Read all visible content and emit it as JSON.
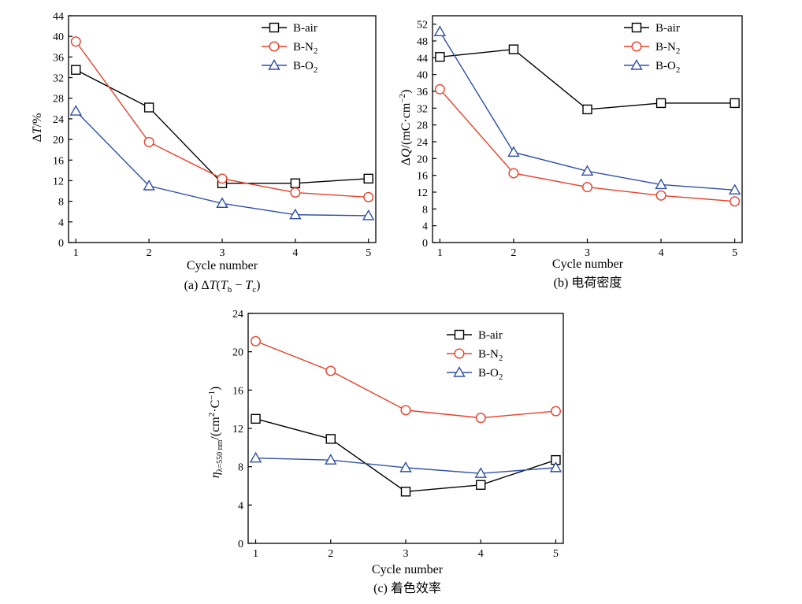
{
  "colors": {
    "B-air": "#000000",
    "B-N2": "#e8402a",
    "B-O2": "#2f4fa8"
  },
  "chart_data": [
    {
      "id": "a",
      "type": "line",
      "xlabel": "Cycle number",
      "caption": "(a) ΔT(Tb − Tc)",
      "x": [
        1,
        2,
        3,
        4,
        5
      ],
      "xlim": [
        0.9,
        5.1
      ],
      "ylim": [
        0,
        44
      ],
      "yticks": [
        0,
        4,
        8,
        12,
        16,
        20,
        24,
        28,
        32,
        36,
        40,
        44
      ],
      "legend_position": "top-right",
      "series": [
        {
          "name": "B-air",
          "marker": "square",
          "values": [
            33.5,
            26.2,
            11.5,
            11.5,
            12.4
          ]
        },
        {
          "name": "B-N2",
          "marker": "circle",
          "values": [
            39.0,
            19.5,
            12.4,
            9.7,
            8.8
          ]
        },
        {
          "name": "B-O2",
          "marker": "triangle",
          "values": [
            25.5,
            11.0,
            7.6,
            5.4,
            5.2
          ]
        }
      ]
    },
    {
      "id": "b",
      "type": "line",
      "xlabel": "Cycle number",
      "caption": "(b) 电荷密度",
      "x": [
        1,
        2,
        3,
        4,
        5
      ],
      "xlim": [
        0.9,
        5.1
      ],
      "ylim": [
        0,
        54
      ],
      "yticks": [
        0,
        4,
        8,
        12,
        16,
        20,
        24,
        28,
        32,
        36,
        40,
        44,
        48,
        52
      ],
      "legend_position": "top-right",
      "series": [
        {
          "name": "B-air",
          "marker": "square",
          "values": [
            44.2,
            46.0,
            31.7,
            33.2,
            33.2
          ]
        },
        {
          "name": "B-N2",
          "marker": "circle",
          "values": [
            36.5,
            16.5,
            13.2,
            11.2,
            9.8
          ]
        },
        {
          "name": "B-O2",
          "marker": "triangle",
          "values": [
            50.2,
            21.5,
            17.0,
            13.8,
            12.5
          ]
        }
      ]
    },
    {
      "id": "c",
      "type": "line",
      "xlabel": "Cycle number",
      "caption": "(c) 着色效率",
      "x": [
        1,
        2,
        3,
        4,
        5
      ],
      "xlim": [
        0.9,
        5.1
      ],
      "ylim": [
        0,
        24
      ],
      "yticks": [
        0,
        4,
        8,
        12,
        16,
        20,
        24
      ],
      "legend_position": "top-right",
      "series": [
        {
          "name": "B-air",
          "marker": "square",
          "values": [
            13.0,
            10.9,
            5.4,
            6.1,
            8.7
          ]
        },
        {
          "name": "B-N2",
          "marker": "circle",
          "values": [
            21.1,
            18.0,
            13.9,
            13.1,
            13.8
          ]
        },
        {
          "name": "B-O2",
          "marker": "triangle",
          "values": [
            8.9,
            8.7,
            7.9,
            7.3,
            7.9
          ]
        }
      ]
    }
  ]
}
